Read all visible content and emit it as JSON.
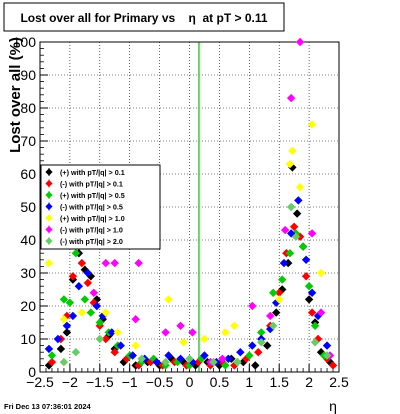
{
  "chart_data": {
    "type": "scatter",
    "title": "Lost over all for Primary vs    η  at pT > 0.11",
    "xlabel": "η",
    "ylabel": "Lost over all (%)",
    "xlim": [
      -2.5,
      2.5
    ],
    "ylim": [
      0,
      100
    ],
    "x_ticks": [
      -2.5,
      -2,
      -1.5,
      -1,
      -0.5,
      0,
      0.5,
      1,
      1.5,
      2,
      2.5
    ],
    "x_tick_labels": [
      "−2.5",
      "−2",
      "−1.5",
      "−1",
      "−0.5",
      "0",
      "0.5",
      "1",
      "1.5",
      "2",
      "2.5"
    ],
    "y_ticks": [
      0,
      10,
      20,
      30,
      40,
      50,
      60,
      70,
      80,
      90,
      100
    ],
    "y_tick_labels": [
      "0",
      "10",
      "20",
      "30",
      "40",
      "50",
      "60",
      "70",
      "80",
      "90",
      "100"
    ],
    "grid": true,
    "legend_position": "center-left",
    "vertical_lines": [
      0.15,
      0.17
    ],
    "footer": "Fri Dec 13 07:36:01 2024",
    "series": [
      {
        "name": "(+) with pT/|q| > 0.1",
        "color": "#000000",
        "points": [
          [
            -2.35,
            2
          ],
          [
            -2.15,
            7
          ],
          [
            -2.05,
            12
          ],
          [
            -1.95,
            28
          ],
          [
            -1.85,
            36
          ],
          [
            -1.75,
            31
          ],
          [
            -1.65,
            29
          ],
          [
            -1.55,
            22
          ],
          [
            -1.45,
            16
          ],
          [
            -1.35,
            11
          ],
          [
            -1.25,
            7
          ],
          [
            -1.1,
            3
          ],
          [
            -0.9,
            2
          ],
          [
            -0.7,
            3
          ],
          [
            -0.5,
            2
          ],
          [
            -0.3,
            4
          ],
          [
            -0.1,
            3
          ],
          [
            0.1,
            2
          ],
          [
            0.3,
            3
          ],
          [
            0.5,
            2
          ],
          [
            0.7,
            4
          ],
          [
            0.9,
            3
          ],
          [
            1.1,
            2
          ],
          [
            1.3,
            8
          ],
          [
            1.45,
            18
          ],
          [
            1.55,
            25
          ],
          [
            1.65,
            33
          ],
          [
            1.72,
            62
          ],
          [
            1.8,
            48
          ],
          [
            1.9,
            38
          ],
          [
            2.0,
            22
          ],
          [
            2.1,
            15
          ],
          [
            2.2,
            6
          ],
          [
            2.35,
            3
          ]
        ]
      },
      {
        "name": "(-) with pT/|q| > 0.1",
        "color": "#ff0000",
        "points": [
          [
            -2.3,
            3
          ],
          [
            -2.15,
            10
          ],
          [
            -2.05,
            17
          ],
          [
            -1.95,
            29
          ],
          [
            -1.8,
            33
          ],
          [
            -1.7,
            27
          ],
          [
            -1.6,
            21
          ],
          [
            -1.5,
            14
          ],
          [
            -1.4,
            10
          ],
          [
            -1.25,
            6
          ],
          [
            -1.05,
            4
          ],
          [
            -0.85,
            2
          ],
          [
            -0.65,
            3
          ],
          [
            -0.45,
            2
          ],
          [
            -0.25,
            3
          ],
          [
            -0.05,
            2
          ],
          [
            0.15,
            3
          ],
          [
            0.35,
            2
          ],
          [
            0.55,
            3
          ],
          [
            0.75,
            2
          ],
          [
            0.95,
            4
          ],
          [
            1.15,
            6
          ],
          [
            1.35,
            14
          ],
          [
            1.5,
            24
          ],
          [
            1.62,
            36
          ],
          [
            1.75,
            44
          ],
          [
            1.85,
            41
          ],
          [
            1.95,
            29
          ],
          [
            2.05,
            18
          ],
          [
            2.15,
            10
          ],
          [
            2.3,
            4
          ],
          [
            2.4,
            2
          ]
        ]
      },
      {
        "name": "(+) with pT/|q| > 0.5",
        "color": "#00cc00",
        "points": [
          [
            -2.3,
            5
          ],
          [
            -2.1,
            22
          ],
          [
            -2.0,
            21
          ],
          [
            -1.9,
            36
          ],
          [
            -1.75,
            22
          ],
          [
            -1.65,
            18
          ],
          [
            -1.5,
            15
          ],
          [
            -1.35,
            12
          ],
          [
            -1.2,
            8
          ],
          [
            -1.0,
            5
          ],
          [
            -0.8,
            3
          ],
          [
            -0.6,
            4
          ],
          [
            -0.4,
            2
          ],
          [
            -0.2,
            3
          ],
          [
            0.0,
            2
          ],
          [
            0.2,
            4
          ],
          [
            0.4,
            3
          ],
          [
            0.6,
            2
          ],
          [
            0.8,
            3
          ],
          [
            1.0,
            5
          ],
          [
            1.2,
            12
          ],
          [
            1.4,
            24
          ],
          [
            1.55,
            28
          ],
          [
            1.68,
            36
          ],
          [
            1.78,
            42
          ],
          [
            1.9,
            38
          ],
          [
            2.0,
            26
          ],
          [
            2.1,
            14
          ],
          [
            2.25,
            5
          ]
        ]
      },
      {
        "name": "(-) with pT/|q| > 0.5",
        "color": "#0000ff",
        "points": [
          [
            -2.35,
            7
          ],
          [
            -2.2,
            10
          ],
          [
            -2.05,
            14
          ],
          [
            -1.95,
            17
          ],
          [
            -1.85,
            26
          ],
          [
            -1.7,
            30
          ],
          [
            -1.55,
            20
          ],
          [
            -1.45,
            17
          ],
          [
            -1.3,
            12
          ],
          [
            -1.15,
            8
          ],
          [
            -0.95,
            5
          ],
          [
            -0.75,
            4
          ],
          [
            -0.55,
            3
          ],
          [
            -0.35,
            5
          ],
          [
            -0.15,
            4
          ],
          [
            0.05,
            3
          ],
          [
            0.25,
            5
          ],
          [
            0.45,
            3
          ],
          [
            0.65,
            4
          ],
          [
            0.85,
            6
          ],
          [
            1.05,
            8
          ],
          [
            1.2,
            10
          ],
          [
            1.35,
            13
          ],
          [
            1.45,
            21
          ],
          [
            1.58,
            33
          ],
          [
            1.7,
            42
          ],
          [
            1.82,
            52
          ],
          [
            1.95,
            34
          ],
          [
            2.05,
            24
          ],
          [
            2.15,
            17
          ],
          [
            2.3,
            8
          ]
        ]
      },
      {
        "name": "(+) with pT/|q| > 1.0",
        "color": "#ffff00",
        "points": [
          [
            -2.35,
            33
          ],
          [
            -2.1,
            16
          ],
          [
            -1.8,
            18
          ],
          [
            -1.6,
            24
          ],
          [
            -1.4,
            18
          ],
          [
            -1.2,
            12
          ],
          [
            -0.9,
            8
          ],
          [
            -0.35,
            22
          ],
          [
            -0.1,
            9
          ],
          [
            0.25,
            10
          ],
          [
            0.6,
            12
          ],
          [
            0.75,
            14
          ],
          [
            1.5,
            22
          ],
          [
            1.68,
            63
          ],
          [
            1.72,
            67
          ],
          [
            1.85,
            56
          ],
          [
            2.05,
            75
          ],
          [
            2.2,
            30
          ]
        ]
      },
      {
        "name": "(-) with pT/|q| > 1.0",
        "color": "#ff00ff",
        "points": [
          [
            -1.6,
            24
          ],
          [
            -1.4,
            33
          ],
          [
            -1.25,
            33
          ],
          [
            -0.85,
            33
          ],
          [
            -0.9,
            16
          ],
          [
            -0.4,
            12
          ],
          [
            -0.15,
            14
          ],
          [
            0.05,
            12
          ],
          [
            0.35,
            3
          ],
          [
            0.55,
            4
          ],
          [
            1.05,
            20
          ],
          [
            1.35,
            17
          ],
          [
            1.6,
            43
          ],
          [
            1.7,
            83
          ],
          [
            1.85,
            100
          ],
          [
            2.05,
            42
          ],
          [
            2.2,
            18
          ],
          [
            2.35,
            5
          ]
        ]
      },
      {
        "name": "(-) with pT/|q| > 2.0",
        "color": "#66cc66",
        "points": [
          [
            -2.1,
            3
          ],
          [
            -1.9,
            6
          ],
          [
            -1.5,
            10
          ],
          [
            -0.8,
            4
          ],
          [
            -0.4,
            3
          ],
          [
            0.0,
            4
          ],
          [
            0.4,
            3
          ],
          [
            0.8,
            3
          ],
          [
            1.2,
            9
          ],
          [
            1.4,
            14
          ],
          [
            1.7,
            50
          ],
          [
            1.78,
            41
          ],
          [
            2.1,
            9
          ],
          [
            2.3,
            5
          ]
        ]
      }
    ]
  }
}
